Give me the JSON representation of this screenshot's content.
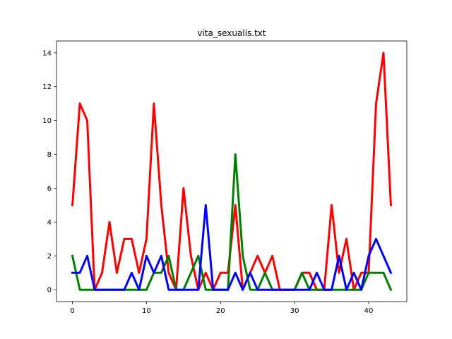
{
  "chart_data": {
    "type": "line",
    "title": "vita_sexualis.txt",
    "xlabel": "",
    "ylabel": "",
    "xlim": [
      -2.15,
      45.15
    ],
    "ylim": [
      -0.7,
      14.7
    ],
    "xticks": [
      0,
      10,
      20,
      30,
      40
    ],
    "yticks": [
      0,
      2,
      4,
      6,
      8,
      10,
      12,
      14
    ],
    "grid": false,
    "legend": "none",
    "x": [
      0,
      1,
      2,
      3,
      4,
      5,
      6,
      7,
      8,
      9,
      10,
      11,
      12,
      13,
      14,
      15,
      16,
      17,
      18,
      19,
      20,
      21,
      22,
      23,
      24,
      25,
      26,
      27,
      28,
      29,
      30,
      31,
      32,
      33,
      34,
      35,
      36,
      37,
      38,
      39,
      40,
      41,
      42,
      43
    ],
    "series": [
      {
        "color": "#ff0000",
        "values": [
          5,
          11,
          10,
          0,
          1,
          4,
          1,
          3,
          3,
          1,
          3,
          11,
          5,
          1,
          0,
          6,
          2,
          0,
          1,
          0,
          1,
          1,
          5,
          0,
          1,
          2,
          1,
          2,
          0,
          0,
          0,
          1,
          1,
          0,
          0,
          5,
          1,
          3,
          0,
          1,
          1,
          11,
          14,
          5
        ]
      },
      {
        "color": "#008000",
        "values": [
          2,
          0,
          0,
          0,
          0,
          0,
          0,
          0,
          0,
          0,
          0,
          1,
          1,
          2,
          0,
          0,
          1,
          2,
          0,
          0,
          0,
          0,
          8,
          2,
          0,
          0,
          1,
          0,
          0,
          0,
          0,
          1,
          0,
          0,
          0,
          0,
          0,
          0,
          0,
          0,
          1,
          1,
          1,
          0
        ]
      },
      {
        "color": "#0000ff",
        "values": [
          1,
          1,
          2,
          0,
          0,
          0,
          0,
          0,
          1,
          0,
          2,
          1,
          2,
          0,
          0,
          0,
          0,
          0,
          5,
          0,
          0,
          0,
          1,
          0,
          1,
          0,
          0,
          0,
          0,
          0,
          0,
          0,
          0,
          1,
          0,
          0,
          2,
          0,
          1,
          0,
          2,
          3,
          2,
          1
        ]
      }
    ]
  }
}
